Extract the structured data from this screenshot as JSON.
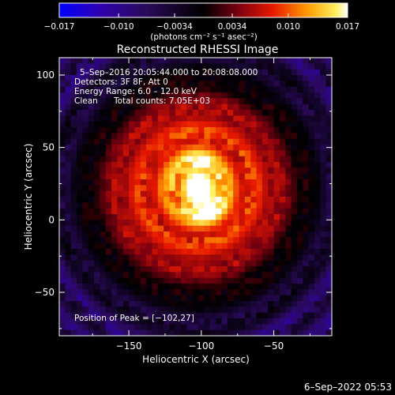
{
  "chart_data": {
    "type": "heatmap",
    "title": "Reconstructed RHESSI Image",
    "xlabel": "Heliocentric X (arcsec)",
    "ylabel": "Heliocentric Y (arcsec)",
    "xlim": [
      -198,
      -10
    ],
    "ylim": [
      -80,
      112
    ],
    "xticks": [
      -150,
      -100,
      -50
    ],
    "xtick_labels": [
      "−150",
      "−100",
      "−50"
    ],
    "yticks": [
      -50,
      0,
      50,
      100
    ],
    "ytick_labels": [
      "−50",
      "0",
      "50",
      "100"
    ],
    "colorbar": {
      "min": -0.017,
      "max": 0.017,
      "ticks": [
        -0.017,
        -0.01,
        -0.0034,
        0.0034,
        0.01,
        0.017
      ],
      "tick_labels": [
        "−0.017",
        "−0.010",
        "−0.0034",
        "0.0034",
        "0.010",
        "0.017"
      ],
      "unit_label": "(photons cm⁻² s⁻¹ asec⁻²)"
    },
    "annotations": {
      "time_range": "5–Sep–2016 20:05:44.000 to 20:08:08.000",
      "detectors": "Detectors: 3F 8F, Att 0",
      "energy": "Energy Range: 6.0 – 12.0 keV",
      "clean_label": "Clean",
      "total_counts": "Total counts: 7.05E+03",
      "peak": "Position of Peak = [−102,27]"
    },
    "peak": [
      -102,
      27
    ],
    "source_center": [
      -103,
      22
    ],
    "colors": {
      "colormap": [
        "#0000ff",
        "#3300aa",
        "#2a0a5a",
        "#000000",
        "#8a0010",
        "#ff2000",
        "#ffb000",
        "#ffffff"
      ],
      "background_cast": "#4a1e8a"
    }
  },
  "footer": {
    "date": "6–Sep–2022 05:53"
  }
}
